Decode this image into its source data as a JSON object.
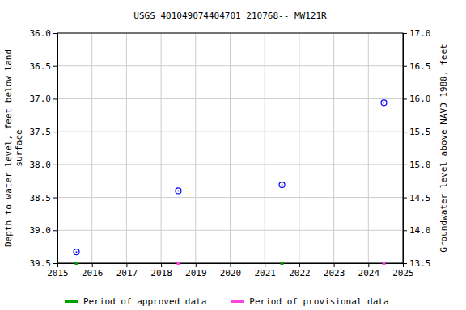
{
  "chart_data": {
    "type": "scatter",
    "title": "USGS 401049074404701 210768-- MW121R",
    "y_label": [
      "Depth to water level, feet below land",
      "surface"
    ],
    "y2_label": "Groundwater level above NAVD 1988, feet",
    "xlim": [
      2015,
      2025
    ],
    "xticks": [
      2015,
      2016,
      2017,
      2018,
      2019,
      2020,
      2021,
      2022,
      2023,
      2024,
      2025
    ],
    "ylim": [
      39.5,
      36.0
    ],
    "yticks": [
      {
        "value": 36,
        "label": "36.0"
      },
      36.5,
      {
        "value": 37,
        "label": "37.0"
      },
      37.5,
      {
        "value": 38,
        "label": "38.0"
      },
      38.5,
      {
        "value": 39,
        "label": "39.0"
      },
      39.5
    ],
    "y2lim": [
      13.5,
      17.0
    ],
    "y2ticks": [
      13.5,
      {
        "value": 14,
        "label": "14.0"
      },
      14.5,
      {
        "value": 15,
        "label": "15.0"
      },
      15.5,
      {
        "value": 16,
        "label": "16.0"
      },
      16.5,
      {
        "value": 17,
        "label": "17.0"
      }
    ],
    "grid": true,
    "legend": "bottom",
    "series": [
      {
        "type": "scatter",
        "color": "#0000ff",
        "marker": "circle",
        "x": [
          2015.55,
          2018.5,
          2021.5,
          2024.45
        ],
        "values": [
          39.33,
          38.4,
          38.31,
          37.06
        ]
      },
      {
        "type": "period",
        "name": "Period of approved data",
        "color": "#00a000",
        "marker": "square",
        "x": [
          2015.55,
          2021.5
        ],
        "values": [
          39.5,
          39.5
        ]
      },
      {
        "type": "period",
        "name": "Period of provisional data",
        "color": "#ff44dd",
        "marker": "square",
        "x": [
          2018.5,
          2024.45
        ],
        "values": [
          39.5,
          39.5
        ]
      }
    ]
  }
}
